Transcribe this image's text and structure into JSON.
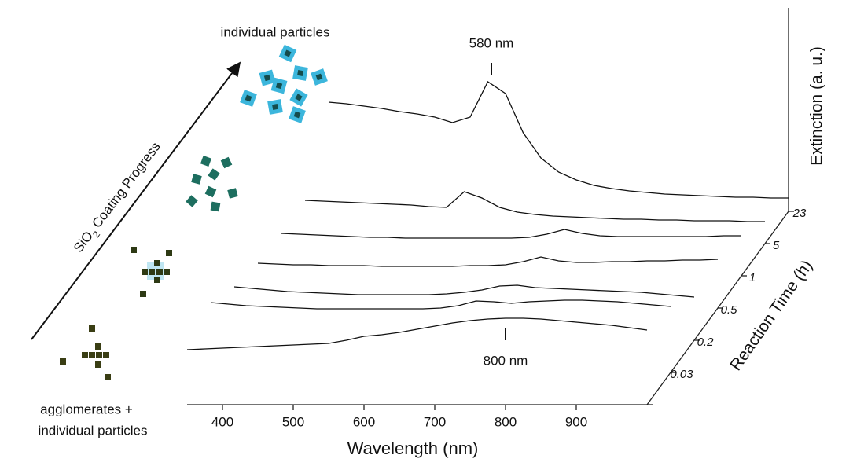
{
  "chart_data": {
    "type": "waterfall",
    "xlabel": "Wavelength (nm)",
    "ylabel": "Extinction (a. u.)",
    "zlabel": "Reaction Time (h)",
    "x": [
      350,
      375,
      400,
      425,
      450,
      475,
      500,
      525,
      550,
      575,
      600,
      625,
      650,
      675,
      700,
      725,
      750,
      775,
      800,
      825,
      850,
      875,
      900,
      925,
      950,
      975,
      1000
    ],
    "xlim": [
      350,
      1000
    ],
    "xticks": [
      400,
      500,
      600,
      700,
      800,
      900
    ],
    "ylim": [
      0,
      250
    ],
    "z_categories": [
      null,
      "0.03",
      "0.2",
      "0.5",
      "1",
      "5",
      "23"
    ],
    "series": [
      {
        "color": "#111111",
        "values": [
          70,
          71,
          72,
          73,
          74,
          75,
          76,
          77,
          78,
          82,
          87,
          89,
          92,
          96,
          100,
          104,
          107,
          109,
          110,
          110,
          109,
          107,
          105,
          103,
          101,
          98,
          95
        ]
      },
      {
        "color": "#111111",
        "values": [
          89,
          87,
          85,
          84,
          83,
          82,
          81,
          81,
          81,
          81,
          81,
          81,
          81,
          82,
          85,
          91,
          90,
          88,
          90,
          91,
          92,
          92,
          91,
          90,
          88,
          86,
          84
        ]
      },
      {
        "color": "#111111",
        "values": [
          68,
          66,
          64,
          62,
          61,
          60,
          59,
          58,
          58,
          58,
          58,
          58,
          59,
          61,
          64,
          69,
          70,
          67,
          66,
          65,
          64,
          63,
          62,
          61,
          59,
          57,
          55
        ]
      },
      {
        "color": "#111111",
        "values": [
          57,
          56,
          55,
          55,
          54,
          54,
          54,
          53,
          53,
          53,
          53,
          53,
          54,
          54,
          55,
          59,
          65,
          60,
          58,
          58,
          59,
          59,
          60,
          60,
          61,
          61,
          62
        ]
      },
      {
        "color": "#111111",
        "values": [
          54,
          53,
          52,
          51,
          50,
          49,
          49,
          48,
          48,
          48,
          48,
          48,
          48,
          48,
          49,
          53,
          59,
          54,
          51,
          50,
          50,
          50,
          50,
          50,
          50,
          51,
          51
        ]
      },
      {
        "color": "#111111",
        "values": [
          55,
          54,
          53,
          52,
          51,
          50,
          49,
          47,
          46,
          66,
          58,
          46,
          40,
          37,
          35,
          34,
          33,
          32,
          31,
          31,
          30,
          30,
          29,
          29,
          29,
          28,
          28
        ]
      },
      {
        "color": "#111111",
        "values": [
          139,
          137,
          134,
          131,
          127,
          124,
          120,
          113,
          120,
          165,
          150,
          100,
          68,
          50,
          40,
          33,
          29,
          26,
          24,
          22,
          21,
          20,
          19,
          18,
          18,
          17,
          17
        ]
      }
    ],
    "annotations": [
      {
        "text": "580 nm",
        "x": 580,
        "series": 6,
        "side": "above"
      },
      {
        "text": "800 nm",
        "x": 800,
        "series": 0,
        "side": "below"
      }
    ],
    "notes": {
      "top": "individual particles",
      "bottom_1": "agglomerates +",
      "bottom_2": "individual particles",
      "arrow_main": "SiO",
      "arrow_sub": "2",
      "arrow_rest": "Coating Progress"
    }
  }
}
